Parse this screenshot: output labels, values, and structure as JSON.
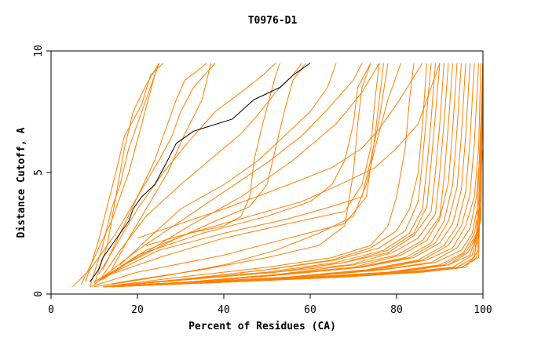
{
  "chart_data": {
    "type": "line",
    "title": "T0976-D1",
    "xlabel": "Percent of Residues (CA)",
    "ylabel": "Distance Cutoff, A",
    "xlim": [
      0,
      100
    ],
    "ylim": [
      0,
      10
    ],
    "xticks": [
      "0",
      "20",
      "40",
      "60",
      "80",
      "100"
    ],
    "yticks": [
      "0",
      "5",
      "10"
    ],
    "grid": false,
    "legend": "none",
    "colors": {
      "highlight": "#000000",
      "others": "#ff8000"
    },
    "series": [
      {
        "highlight": true,
        "x": [
          9,
          11,
          12,
          14,
          16,
          18,
          19,
          21,
          24,
          27,
          29,
          33,
          42,
          47,
          53,
          56,
          60
        ],
        "y": [
          0.5,
          1,
          1.5,
          2,
          2.5,
          3,
          3.5,
          4,
          4.5,
          5.5,
          6.2,
          6.7,
          7.2,
          8,
          8.5,
          9,
          9.5
        ]
      },
      {
        "x": [
          9,
          12,
          14,
          16,
          18,
          20,
          22,
          24,
          25
        ],
        "y": [
          0.3,
          2,
          3.5,
          4.5,
          6,
          7,
          8,
          9,
          9.5
        ]
      },
      {
        "x": [
          8,
          11,
          13,
          15,
          17,
          21,
          23,
          26
        ],
        "y": [
          0.5,
          2.2,
          3.6,
          5,
          6.5,
          7.8,
          9,
          9.5
        ]
      },
      {
        "x": [
          10,
          13,
          15,
          17,
          19,
          22,
          25
        ],
        "y": [
          0.4,
          2,
          4,
          6,
          7.5,
          8.6,
          9.5
        ]
      },
      {
        "x": [
          7,
          10,
          14,
          18,
          21,
          24,
          25
        ],
        "y": [
          0.4,
          1.5,
          3,
          5,
          7,
          9,
          9.5
        ]
      },
      {
        "x": [
          5,
          9,
          15,
          20,
          25,
          28,
          30,
          33,
          38
        ],
        "y": [
          0.3,
          1,
          2.5,
          4,
          5.5,
          6.5,
          7.5,
          8.5,
          9.5
        ]
      },
      {
        "x": [
          12,
          16,
          20,
          24,
          27,
          29,
          31,
          34,
          36
        ],
        "y": [
          1,
          2.5,
          4,
          5.5,
          7,
          8,
          8.8,
          9.2,
          9.5
        ]
      },
      {
        "x": [
          14,
          18,
          22,
          27,
          31,
          35,
          37
        ],
        "y": [
          1,
          2.3,
          3.5,
          5,
          6.6,
          8,
          9.5
        ]
      },
      {
        "x": [
          11,
          15,
          20,
          26,
          32,
          38,
          44,
          49,
          52
        ],
        "y": [
          0.8,
          2,
          3.5,
          5,
          6.3,
          7.5,
          8.3,
          9,
          9.5
        ]
      },
      {
        "x": [
          11,
          16,
          22,
          30,
          38,
          44,
          48,
          52,
          56,
          58
        ],
        "y": [
          0.5,
          1.8,
          3.2,
          4.5,
          5.7,
          6.6,
          7.4,
          8.3,
          9,
          9.5
        ]
      },
      {
        "x": [
          16,
          22,
          30,
          40,
          48,
          54,
          60,
          64,
          66
        ],
        "y": [
          1.2,
          2.2,
          3.5,
          4.5,
          5.5,
          6.5,
          7.5,
          8.5,
          9.5
        ]
      },
      {
        "x": [
          12,
          20,
          30,
          40,
          50,
          58,
          64,
          70,
          72
        ],
        "y": [
          0.7,
          1.8,
          3,
          4.2,
          5.4,
          6.5,
          7.6,
          8.8,
          9.5
        ]
      },
      {
        "x": [
          10,
          20,
          32,
          44,
          56,
          66,
          72,
          76
        ],
        "y": [
          0.5,
          1.5,
          2.8,
          4,
          5.5,
          7,
          8.3,
          9.5
        ]
      },
      {
        "x": [
          10,
          18,
          28,
          38,
          46,
          50,
          52,
          54,
          56,
          59
        ],
        "y": [
          0.5,
          1.3,
          2.2,
          3,
          3.6,
          4.5,
          6,
          7.5,
          8.8,
          9.5
        ]
      },
      {
        "x": [
          12,
          22,
          32,
          40,
          44,
          46,
          47,
          49,
          52,
          53
        ],
        "y": [
          0.6,
          1.8,
          2.5,
          2.8,
          3.2,
          4,
          5.5,
          7,
          9,
          9.5
        ]
      },
      {
        "x": [
          10,
          20,
          35,
          50,
          60,
          65,
          68,
          70,
          71,
          74
        ],
        "y": [
          0.4,
          1.6,
          2.5,
          3.2,
          3.8,
          4.5,
          5.5,
          7,
          8.5,
          9.5
        ]
      },
      {
        "x": [
          10,
          25,
          40,
          55,
          65,
          72,
          74,
          76,
          78
        ],
        "y": [
          0.5,
          1.8,
          2.5,
          3.1,
          3.6,
          4,
          5.5,
          7.2,
          9.5
        ]
      },
      {
        "x": [
          12,
          25,
          40,
          55,
          68,
          72,
          74,
          75,
          76
        ],
        "y": [
          0.7,
          1.5,
          2.3,
          2.9,
          3.4,
          4.5,
          6,
          8,
          9.5
        ]
      },
      {
        "x": [
          9,
          20,
          40,
          55,
          68,
          73,
          75,
          77
        ],
        "y": [
          0.3,
          0.9,
          1.6,
          2.3,
          2.9,
          4,
          6.5,
          9.5
        ]
      },
      {
        "x": [
          20,
          40,
          55,
          65,
          72,
          76,
          80,
          86
        ],
        "y": [
          2.3,
          3.5,
          4.5,
          5.2,
          6,
          6.8,
          7.8,
          9.5
        ]
      },
      {
        "x": [
          22,
          42,
          58,
          68,
          75,
          80,
          85,
          88,
          90
        ],
        "y": [
          2,
          3,
          3.8,
          4.6,
          5.2,
          6,
          7,
          8.5,
          9.5
        ]
      },
      {
        "x": [
          10,
          20,
          35,
          50,
          62,
          68,
          70,
          71,
          72,
          74
        ],
        "y": [
          0.3,
          0.6,
          1,
          1.5,
          2,
          2.8,
          5,
          7,
          8.5,
          9.5
        ]
      },
      {
        "x": [
          14,
          28,
          40,
          52,
          62,
          70,
          73,
          75,
          78,
          81
        ],
        "y": [
          0.4,
          0.8,
          1.2,
          1.8,
          2.5,
          3.2,
          4.5,
          6,
          8,
          9.5
        ]
      },
      {
        "x": [
          12,
          30,
          50,
          65,
          74,
          78,
          80,
          82,
          83,
          84
        ],
        "y": [
          0.3,
          0.7,
          1.1,
          1.5,
          2,
          2.8,
          4,
          6,
          8,
          9.5
        ]
      },
      {
        "x": [
          12,
          30,
          50,
          65,
          74,
          80,
          83,
          85,
          86,
          87
        ],
        "y": [
          0.3,
          0.6,
          1,
          1.4,
          1.9,
          2.6,
          3.5,
          5,
          7,
          9.5
        ]
      },
      {
        "x": [
          12,
          30,
          50,
          66,
          76,
          82,
          85,
          86,
          87,
          88
        ],
        "y": [
          0.3,
          0.6,
          1,
          1.4,
          1.9,
          2.6,
          3.8,
          5.5,
          7.5,
          9.5
        ]
      },
      {
        "x": [
          12,
          30,
          50,
          66,
          77,
          83,
          86,
          87,
          88,
          89
        ],
        "y": [
          0.3,
          0.6,
          0.9,
          1.3,
          1.8,
          2.5,
          3.5,
          5.2,
          7.2,
          9.5
        ]
      },
      {
        "x": [
          12,
          32,
          52,
          68,
          78,
          84,
          87,
          88,
          89,
          90
        ],
        "y": [
          0.3,
          0.6,
          0.9,
          1.3,
          1.8,
          2.5,
          3.6,
          5.4,
          7.4,
          9.5
        ]
      },
      {
        "x": [
          12,
          32,
          52,
          68,
          78,
          84,
          88,
          89,
          90,
          91
        ],
        "y": [
          0.3,
          0.6,
          0.9,
          1.3,
          1.7,
          2.4,
          3.4,
          5,
          7,
          9.5
        ]
      },
      {
        "x": [
          12,
          32,
          52,
          69,
          79,
          85,
          89,
          90,
          91,
          92
        ],
        "y": [
          0.3,
          0.6,
          0.9,
          1.2,
          1.7,
          2.3,
          3.3,
          5,
          7.1,
          9.5
        ]
      },
      {
        "x": [
          12,
          32,
          52,
          70,
          80,
          86,
          90,
          91,
          92,
          93
        ],
        "y": [
          0.3,
          0.5,
          0.8,
          1.2,
          1.6,
          2.2,
          3.2,
          4.8,
          7,
          9.5
        ]
      },
      {
        "x": [
          12,
          32,
          52,
          70,
          81,
          87,
          90,
          92,
          93,
          94
        ],
        "y": [
          0.3,
          0.5,
          0.8,
          1.1,
          1.6,
          2.2,
          3.1,
          4.6,
          6.8,
          9.5
        ]
      },
      {
        "x": [
          12,
          32,
          52,
          71,
          82,
          88,
          91,
          93,
          94,
          95
        ],
        "y": [
          0.3,
          0.5,
          0.8,
          1.1,
          1.5,
          2.1,
          3,
          4.5,
          6.8,
          9.5
        ]
      },
      {
        "x": [
          12,
          34,
          54,
          72,
          83,
          89,
          92,
          94,
          95,
          96
        ],
        "y": [
          0.3,
          0.5,
          0.8,
          1.1,
          1.5,
          2.1,
          3,
          4.4,
          6.5,
          9.5
        ]
      },
      {
        "x": [
          12,
          34,
          54,
          72,
          84,
          90,
          93,
          95,
          96,
          97
        ],
        "y": [
          0.3,
          0.5,
          0.8,
          1.1,
          1.5,
          2.1,
          2.9,
          4.3,
          6.5,
          9.5
        ]
      },
      {
        "x": [
          12,
          34,
          55,
          73,
          85,
          91,
          94,
          96,
          97,
          98
        ],
        "y": [
          0.3,
          0.5,
          0.7,
          1,
          1.4,
          2,
          2.8,
          4.2,
          6.3,
          9.5
        ]
      },
      {
        "x": [
          12,
          34,
          56,
          74,
          86,
          92,
          95,
          97,
          98,
          99
        ],
        "y": [
          0.3,
          0.5,
          0.7,
          1,
          1.4,
          2,
          2.8,
          4.1,
          6.2,
          9.5
        ]
      },
      {
        "x": [
          12,
          34,
          56,
          75,
          87,
          93,
          96,
          98,
          99,
          99.5
        ],
        "y": [
          0.3,
          0.5,
          0.7,
          1,
          1.4,
          1.9,
          2.8,
          4,
          6,
          9.5
        ]
      },
      {
        "x": [
          12,
          36,
          58,
          76,
          88,
          94,
          97,
          98.5,
          99.5,
          100
        ],
        "y": [
          0.3,
          0.5,
          0.7,
          1,
          1.3,
          1.9,
          2.7,
          4,
          6.2,
          9.5
        ]
      },
      {
        "x": [
          12,
          36,
          58,
          77,
          89,
          95,
          97.5,
          99,
          100,
          100
        ],
        "y": [
          0.3,
          0.5,
          0.7,
          1,
          1.3,
          1.8,
          2.5,
          3.8,
          6,
          9.5
        ]
      },
      {
        "x": [
          12,
          36,
          60,
          78,
          90,
          95.5,
          98,
          99.5,
          100
        ],
        "y": [
          0.3,
          0.5,
          0.7,
          0.9,
          1.2,
          1.7,
          2.5,
          4,
          9.5
        ]
      },
      {
        "x": [
          12,
          38,
          60,
          79,
          91,
          96,
          98.5,
          100
        ],
        "y": [
          0.3,
          0.5,
          0.7,
          0.9,
          1.2,
          1.7,
          2.5,
          9.5
        ]
      },
      {
        "x": [
          12,
          38,
          62,
          80,
          92,
          96.5,
          99,
          100
        ],
        "y": [
          0.3,
          0.5,
          0.7,
          0.9,
          1.2,
          1.7,
          2.6,
          9.5
        ]
      },
      {
        "x": [
          12,
          38,
          62,
          81,
          92,
          97,
          99.5,
          100
        ],
        "y": [
          0.3,
          0.5,
          0.7,
          0.9,
          1.2,
          1.6,
          3,
          9.5
        ]
      },
      {
        "x": [
          12,
          40,
          64,
          82,
          93,
          97.5,
          99.5,
          100
        ],
        "y": [
          0.3,
          0.5,
          0.7,
          0.9,
          1.1,
          1.6,
          3.2,
          9.5
        ]
      },
      {
        "x": [
          14,
          40,
          64,
          83,
          94,
          98,
          99.5,
          100
        ],
        "y": [
          0.3,
          0.5,
          0.7,
          0.9,
          1.1,
          1.5,
          3.4,
          9.5
        ]
      },
      {
        "x": [
          14,
          40,
          66,
          84,
          94,
          98,
          99,
          100
        ],
        "y": [
          0.3,
          0.5,
          0.7,
          0.9,
          1.1,
          1.5,
          3.2,
          9.5
        ]
      },
      {
        "x": [
          14,
          42,
          66,
          84,
          95,
          98.5,
          99.5,
          100
        ],
        "y": [
          0.3,
          0.5,
          0.7,
          0.9,
          1.1,
          1.5,
          3.6,
          9.5
        ]
      },
      {
        "x": [
          14,
          42,
          68,
          85,
          95,
          99,
          100
        ],
        "y": [
          0.3,
          0.5,
          0.7,
          0.9,
          1.1,
          1.5,
          9.5
        ]
      },
      {
        "x": [
          14,
          42,
          68,
          86,
          96,
          99,
          100
        ],
        "y": [
          0.3,
          0.5,
          0.7,
          0.9,
          1.1,
          1.8,
          9.5
        ]
      }
    ]
  }
}
